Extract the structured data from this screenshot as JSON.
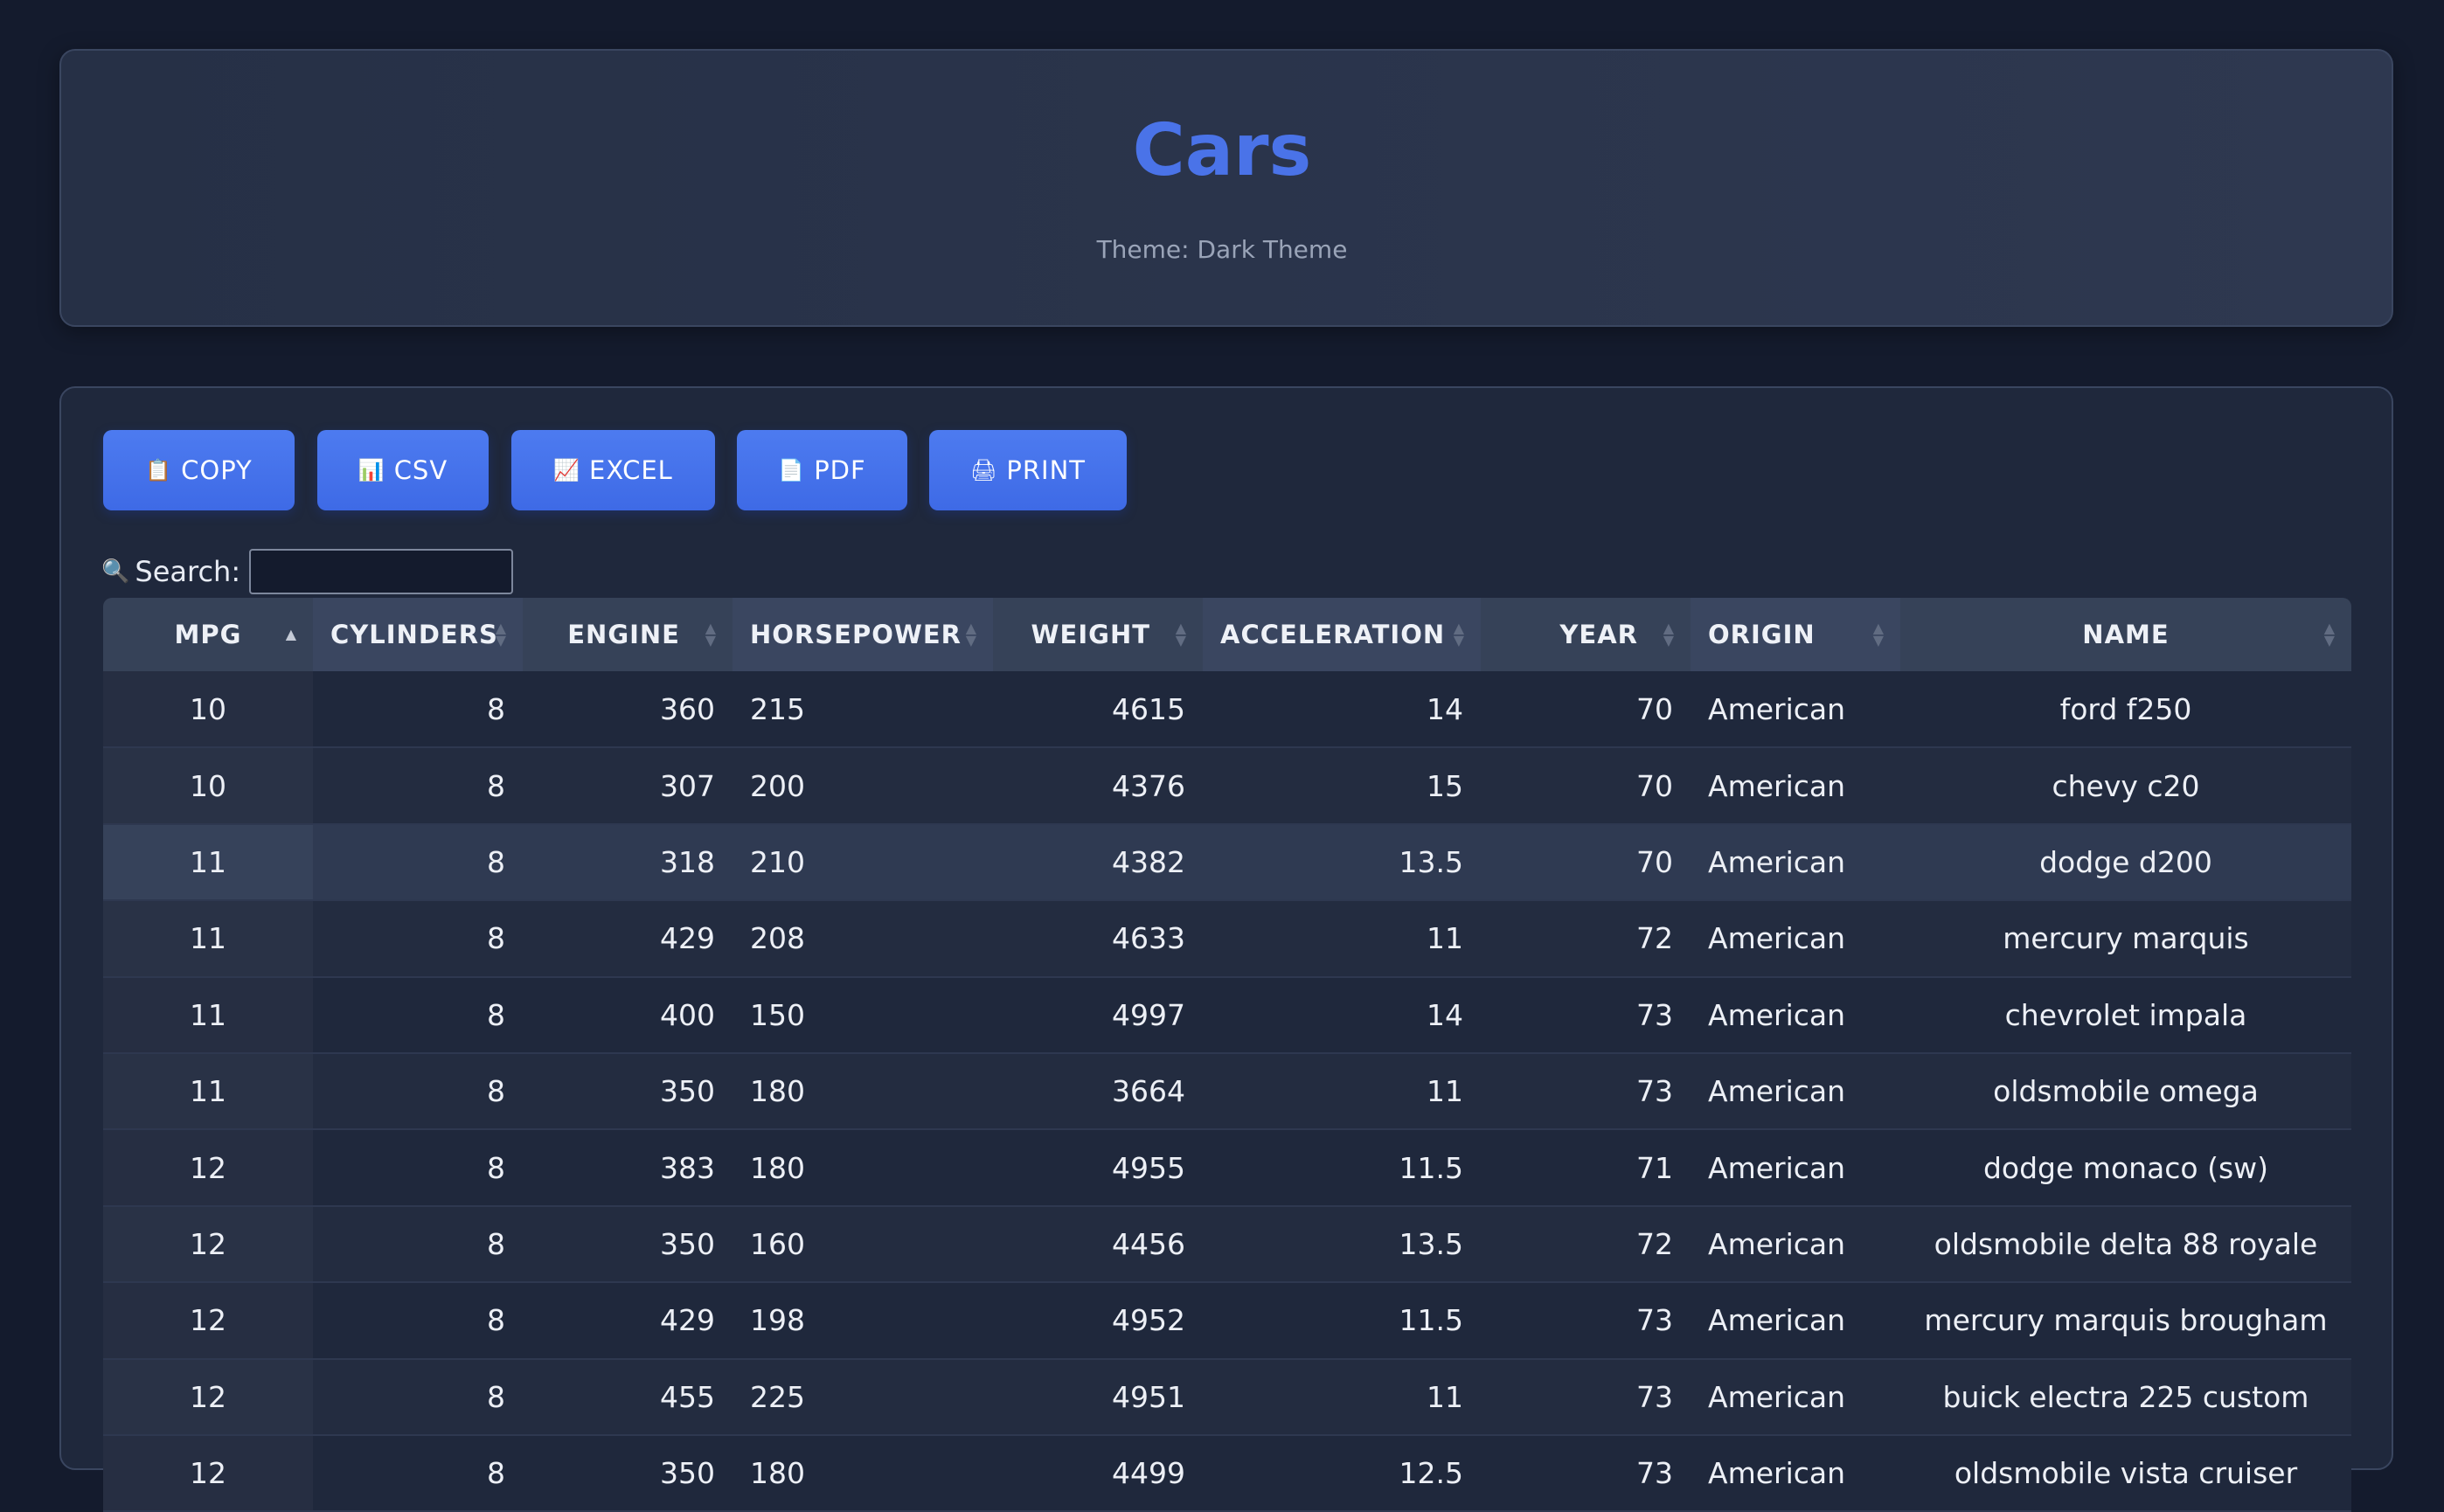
{
  "header": {
    "title": "Cars",
    "theme_label": "Theme: Dark Theme"
  },
  "buttons": [
    {
      "icon": "📋",
      "label": "COPY"
    },
    {
      "icon": "📊",
      "label": "CSV"
    },
    {
      "icon": "📈",
      "label": "EXCEL"
    },
    {
      "icon": "📄",
      "label": "PDF"
    },
    {
      "icon": "🖨",
      "label": "PRINT"
    }
  ],
  "search": {
    "icon": "🔍",
    "label": "Search:",
    "value": ""
  },
  "table": {
    "columns": [
      "MPG",
      "CYLINDERS",
      "ENGINE",
      "HORSEPOWER",
      "WEIGHT",
      "ACCELERATION",
      "YEAR",
      "ORIGIN",
      "NAME"
    ],
    "sort": {
      "column": "MPG",
      "direction": "ascending"
    },
    "rows": [
      [
        "10",
        "8",
        "360",
        "215",
        "4615",
        "14",
        "70",
        "American",
        "ford f250"
      ],
      [
        "10",
        "8",
        "307",
        "200",
        "4376",
        "15",
        "70",
        "American",
        "chevy c20"
      ],
      [
        "11",
        "8",
        "318",
        "210",
        "4382",
        "13.5",
        "70",
        "American",
        "dodge d200"
      ],
      [
        "11",
        "8",
        "429",
        "208",
        "4633",
        "11",
        "72",
        "American",
        "mercury marquis"
      ],
      [
        "11",
        "8",
        "400",
        "150",
        "4997",
        "14",
        "73",
        "American",
        "chevrolet impala"
      ],
      [
        "11",
        "8",
        "350",
        "180",
        "3664",
        "11",
        "73",
        "American",
        "oldsmobile omega"
      ],
      [
        "12",
        "8",
        "383",
        "180",
        "4955",
        "11.5",
        "71",
        "American",
        "dodge monaco (sw)"
      ],
      [
        "12",
        "8",
        "350",
        "160",
        "4456",
        "13.5",
        "72",
        "American",
        "oldsmobile delta 88 royale"
      ],
      [
        "12",
        "8",
        "429",
        "198",
        "4952",
        "11.5",
        "73",
        "American",
        "mercury marquis brougham"
      ],
      [
        "12",
        "8",
        "455",
        "225",
        "4951",
        "11",
        "73",
        "American",
        "buick electra 225 custom"
      ],
      [
        "12",
        "8",
        "350",
        "180",
        "4499",
        "12.5",
        "73",
        "American",
        "oldsmobile vista cruiser"
      ]
    ]
  },
  "colors": {
    "background": "#141b2d",
    "card": "#1f283c",
    "accent": "#4a73e8",
    "header_row": "#3a4660"
  }
}
